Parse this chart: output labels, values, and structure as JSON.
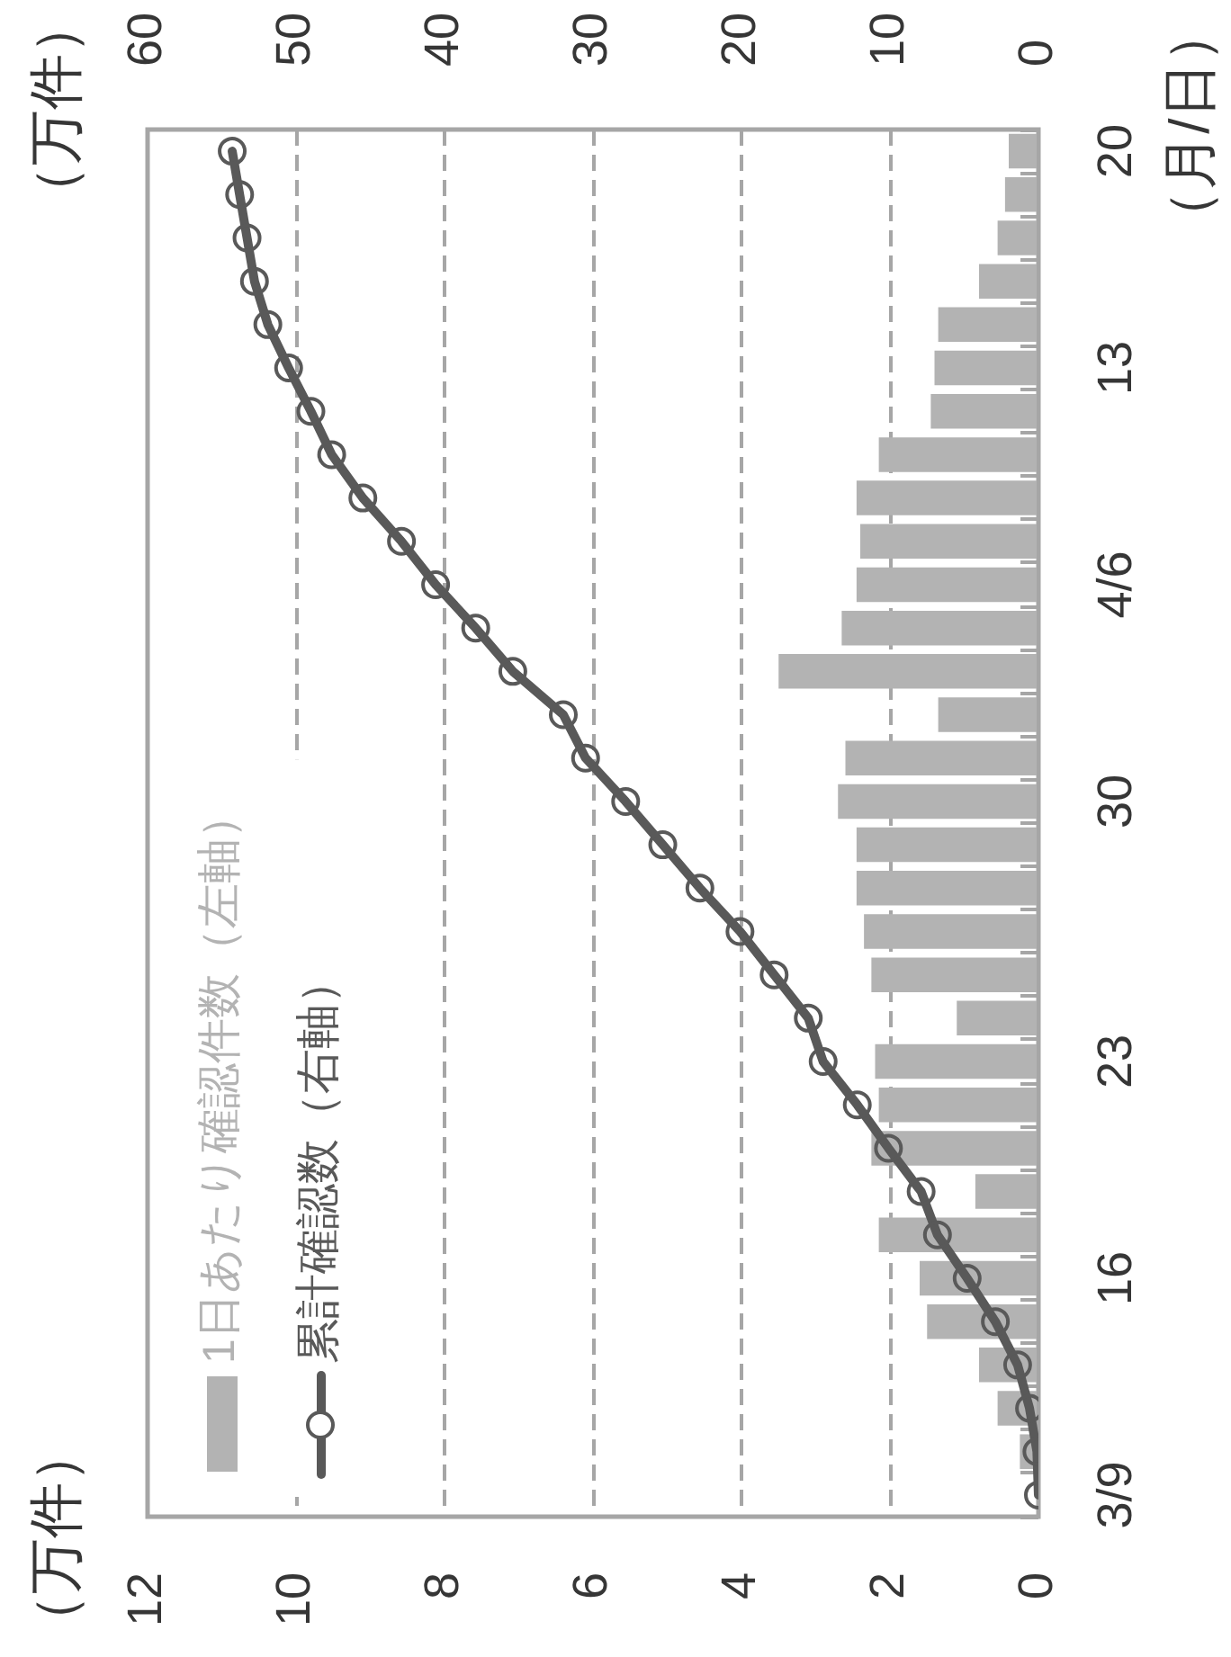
{
  "chart_data": {
    "type": "bar",
    "orientation": "horizontal",
    "categories": [
      "20",
      null,
      null,
      null,
      null,
      "13",
      null,
      null,
      null,
      null,
      "4/6",
      null,
      null,
      null,
      null,
      "30",
      null,
      null,
      null,
      null,
      null,
      "23",
      null,
      null,
      null,
      null,
      "16",
      null,
      null,
      null,
      null,
      "3/9"
    ],
    "x2label": "（万件）",
    "ylabel": "（月/日）",
    "annotations": [
      "（万件）"
    ],
    "xlim": [
      12,
      0
    ],
    "xticks": [
      0,
      2,
      4,
      6,
      8,
      10,
      12
    ],
    "x2lim": [
      60,
      0
    ],
    "x2ticks": [
      0,
      10,
      20,
      30,
      40,
      50,
      60
    ],
    "grid": "x",
    "legend": "bottom left",
    "series": [
      {
        "name": "1日あたり確認件数（左軸）",
        "color": "#b3b3b3",
        "values": [
          0.4,
          0.45,
          0.55,
          0.8,
          1.35,
          1.4,
          1.45,
          2.15,
          2.45,
          2.4,
          2.45,
          2.65,
          3.5,
          1.35,
          2.6,
          2.7,
          2.45,
          2.45,
          2.35,
          2.25,
          1.1,
          2.2,
          2.15,
          2.25,
          0.85,
          2.15,
          1.6,
          1.5,
          0.8,
          0.55,
          0.25,
          null
        ]
      },
      {
        "name": "累計確認数（右軸）",
        "type": "line",
        "axis": "x2",
        "color": "#595959",
        "marker": "circle",
        "values": [
          54.3,
          53.8,
          53.3,
          52.8,
          51.9,
          50.5,
          49,
          47.6,
          45.5,
          42.9,
          40.6,
          37.9,
          35.4,
          32,
          30.5,
          27.8,
          25.3,
          22.8,
          20.1,
          17.8,
          15.5,
          14.5,
          12.2,
          10.1,
          7.9,
          6.8,
          4.8,
          2.9,
          1.4,
          0.6,
          0.1,
          0
        ]
      }
    ]
  }
}
